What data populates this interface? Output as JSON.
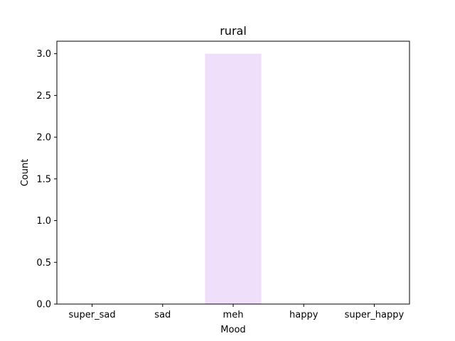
{
  "chart_data": {
    "type": "bar",
    "title": "rural",
    "xlabel": "Mood",
    "ylabel": "Count",
    "categories": [
      "super_sad",
      "sad",
      "meh",
      "happy",
      "super_happy"
    ],
    "values": [
      0,
      0,
      3,
      0,
      0
    ],
    "ylim": [
      0,
      3.15
    ],
    "yticks": [
      "0.0",
      "0.5",
      "1.0",
      "1.5",
      "2.0",
      "2.5",
      "3.0"
    ],
    "bar_color": "#efdffb",
    "grid": false,
    "legend": "none"
  }
}
